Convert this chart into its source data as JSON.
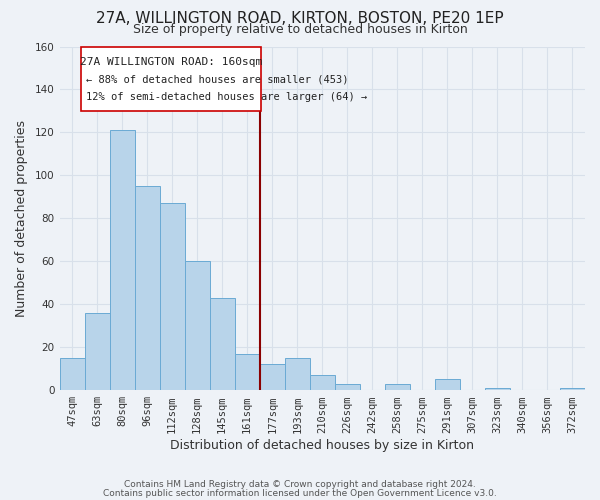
{
  "title": "27A, WILLINGTON ROAD, KIRTON, BOSTON, PE20 1EP",
  "subtitle": "Size of property relative to detached houses in Kirton",
  "xlabel": "Distribution of detached houses by size in Kirton",
  "ylabel": "Number of detached properties",
  "bar_color": "#b8d4ea",
  "bar_edge_color": "#6aaad4",
  "background_color": "#eef2f7",
  "grid_color": "#d8e0ea",
  "categories": [
    "47sqm",
    "63sqm",
    "80sqm",
    "96sqm",
    "112sqm",
    "128sqm",
    "145sqm",
    "161sqm",
    "177sqm",
    "193sqm",
    "210sqm",
    "226sqm",
    "242sqm",
    "258sqm",
    "275sqm",
    "291sqm",
    "307sqm",
    "323sqm",
    "340sqm",
    "356sqm",
    "372sqm"
  ],
  "values": [
    15,
    36,
    121,
    95,
    87,
    60,
    43,
    17,
    12,
    15,
    7,
    3,
    0,
    3,
    0,
    5,
    0,
    1,
    0,
    0,
    1
  ],
  "ylim": [
    0,
    160
  ],
  "yticks": [
    0,
    20,
    40,
    60,
    80,
    100,
    120,
    140,
    160
  ],
  "property_line_idx": 7,
  "annotation_title": "27A WILLINGTON ROAD: 160sqm",
  "annotation_line1": "← 88% of detached houses are smaller (453)",
  "annotation_line2": "12% of semi-detached houses are larger (64) →",
  "footer1": "Contains HM Land Registry data © Crown copyright and database right 2024.",
  "footer2": "Contains public sector information licensed under the Open Government Licence v3.0.",
  "title_fontsize": 11,
  "subtitle_fontsize": 9,
  "xlabel_fontsize": 9,
  "ylabel_fontsize": 9,
  "tick_fontsize": 7.5,
  "footer_fontsize": 6.5
}
